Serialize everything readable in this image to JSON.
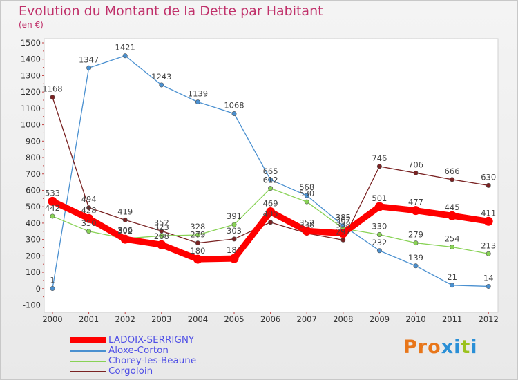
{
  "header": {
    "title": "Evolution du Montant de la Dette par Habitant",
    "subtitle": "(en €)"
  },
  "brand": {
    "text": "Proxiti",
    "letter_colors": [
      "#e8761a",
      "#e8761a",
      "#e8761a",
      "#2a8fd6",
      "#2a8fd6",
      "#9bc21e",
      "#2a8fd6"
    ]
  },
  "chart_data": {
    "type": "line",
    "title": "Evolution du Montant de la Dette par Habitant",
    "subtitle": "(en €)",
    "xlabel": "",
    "ylabel": "",
    "categories": [
      "2000",
      "2001",
      "2002",
      "2003",
      "2004",
      "2005",
      "2006",
      "2007",
      "2008",
      "2009",
      "2010",
      "2011",
      "2012"
    ],
    "y_ticks": [
      "-100",
      "0",
      "100",
      "200",
      "300",
      "400",
      "500",
      "600",
      "700",
      "800",
      "900",
      "1000",
      "1100",
      "1200",
      "1300",
      "1400",
      "1500"
    ],
    "ylim": [
      -100,
      1500
    ],
    "grid": false,
    "legend_position": "bottom-left",
    "series": [
      {
        "name": "LADOIX-SERRIGNY",
        "color": "#ff0000",
        "values": [
          533,
          428,
          302,
          268,
          180,
          184,
          469,
          352,
          338,
          501,
          477,
          445,
          411
        ],
        "labels": [
          "533",
          "428",
          "302",
          "268",
          "180",
          "184",
          "469",
          "352",
          "338",
          "501",
          "477",
          "445",
          "411"
        ]
      },
      {
        "name": "Aloxe-Corton",
        "color": "#4a90d0",
        "values": [
          1,
          1347,
          1421,
          1243,
          1139,
          1068,
          665,
          568,
          385,
          232,
          139,
          21,
          14
        ],
        "labels": [
          "1",
          "1347",
          "1421",
          "1243",
          "1139",
          "1068",
          "665",
          "568",
          "385",
          "232",
          "139",
          "21",
          "14"
        ]
      },
      {
        "name": "Chorey-les-Beaune",
        "color": "#88d255",
        "values": [
          442,
          350,
          306,
          323,
          328,
          391,
          612,
          530,
          367,
          330,
          279,
          254,
          213
        ],
        "labels": [
          "442",
          "350",
          "306",
          "323",
          "328",
          "391",
          "612",
          "530",
          "367",
          "330",
          "279",
          "254",
          "213"
        ]
      },
      {
        "name": "Corgoloin",
        "color": "#7a2323",
        "values": [
          1168,
          494,
          419,
          352,
          279,
          303,
          405,
          338,
          297,
          746,
          706,
          666,
          630
        ],
        "labels": [
          "1168",
          "494",
          "419",
          "352",
          "279",
          "303",
          "405",
          "338",
          "297",
          "746",
          "706",
          "666",
          "630"
        ]
      }
    ]
  }
}
